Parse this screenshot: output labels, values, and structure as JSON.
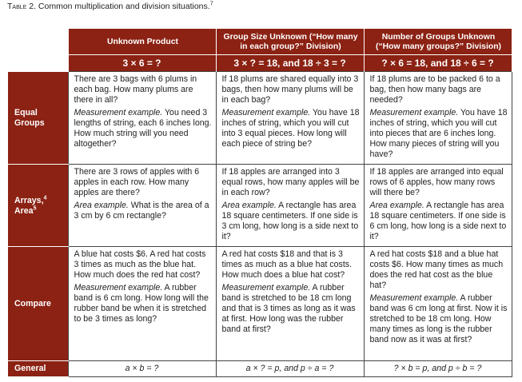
{
  "caption": {
    "label": "Table 2.",
    "text": "Common multiplication and division situations.",
    "note": "7"
  },
  "columns": [
    {
      "title": "Unknown Product",
      "equation": "3 × 6 = ?"
    },
    {
      "title": "Group Size Unknown (“How many in each group?” Division)",
      "equation": "3 × ? = 18, and 18 ÷ 3 = ?"
    },
    {
      "title": "Number of Groups Unknown (“How many groups?” Division)",
      "equation": "? × 6 = 18, and 18 ÷ 6 = ?"
    }
  ],
  "rows": [
    {
      "label": "Equal Groups",
      "cells": [
        {
          "main": "There are 3 bags with 6 plums in each bag. How many plums are there in all?",
          "ex_label": "Measurement example.",
          "ex_text": " You need 3 lengths of string, each 6 inches long. How much string will you need altogether?"
        },
        {
          "main": "If 18 plums are shared equally into 3 bags, then how many plums will be in each bag?",
          "ex_label": "Measurement example.",
          "ex_text": " You have 18 inches of string, which you will cut into 3 equal pieces. How long will each piece of string be?"
        },
        {
          "main": "If 18 plums are to be packed 6 to a bag, then how many bags are needed?",
          "ex_label": "Measurement example.",
          "ex_text": " You have 18 inches of string, which you will cut into pieces that are 6 inches long. How many pieces of string will you have?"
        }
      ]
    },
    {
      "label": "Arrays,",
      "label_note": "4",
      "label2": "Area",
      "label2_note": "5",
      "cells": [
        {
          "main": "There are 3 rows of apples with 6 apples in each row. How many apples are there?",
          "ex_label": "Area example.",
          "ex_text": " What is the area of a 3 cm by 6 cm rectangle?"
        },
        {
          "main": "If 18 apples are arranged into 3 equal rows, how many apples will be in each row?",
          "ex_label": "Area example.",
          "ex_text": " A rectangle has area 18 square centimeters. If one side is 3 cm long, how long is a side next to it?"
        },
        {
          "main": "If 18 apples are arranged into equal rows of 6 apples, how many rows will there be?",
          "ex_label": "Area example.",
          "ex_text": " A rectangle has area 18 square centimeters. If one side is 6 cm long, how long is a side next to it?"
        }
      ]
    },
    {
      "label": "Compare",
      "cells": [
        {
          "main": "A blue hat costs $6. A red hat costs 3 times as much as the blue hat. How much does the red hat cost?",
          "ex_label": "Measurement example.",
          "ex_text": " A rubber band is 6 cm long. How long will the rubber band be when it is stretched to be 3 times as long?"
        },
        {
          "main": "A red hat costs $18 and that is 3 times as much as a blue hat costs. How much does a blue hat cost?",
          "ex_label": "Measurement example.",
          "ex_text": " A rubber band is stretched to be 18 cm long and that is 3 times as long as it was at first. How long was the rubber band at first?"
        },
        {
          "main": "A red hat costs $18 and a blue hat costs $6. How many times as much does the red hat cost as the blue hat?",
          "ex_label": "Measurement example.",
          "ex_text": " A rubber band was 6 cm long at first. Now it is stretched to be 18 cm long. How many times as long is the rubber band now as it was at first?"
        }
      ]
    }
  ],
  "general": {
    "label": "General",
    "cells": [
      "a × b = ?",
      "a × ? = p, and p ÷ a = ?",
      "? × b = p, and p ÷ b = ?"
    ]
  },
  "colors": {
    "header": "#8b2213"
  }
}
